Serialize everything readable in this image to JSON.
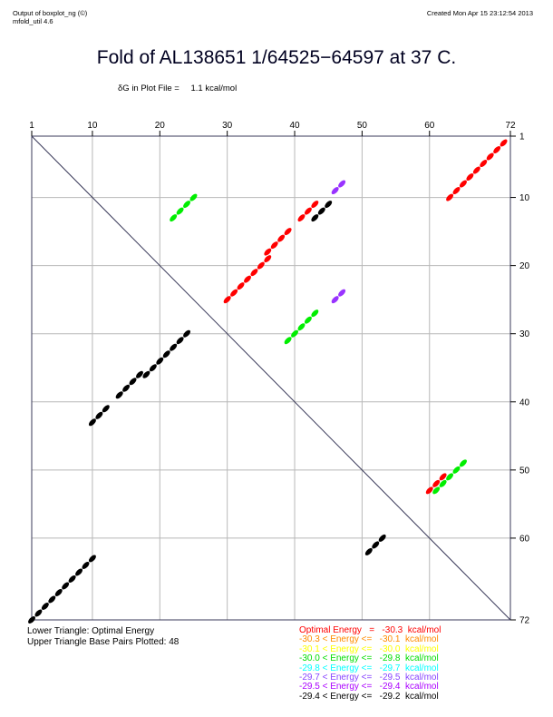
{
  "header": {
    "left_line1": "Output of boxplot_ng (©)",
    "left_line2": "mfold_util 4.6",
    "right": "Created Mon Apr 15 23:12:54 2013"
  },
  "title": "Fold of AL138651 1/64525−64597 at 37 C.",
  "dg": {
    "label": "δG in Plot File =",
    "value": "1.1 kcal/mol"
  },
  "footer": {
    "lower": "Lower Triangle: Optimal Energy",
    "upper": "Upper Triangle Base Pairs Plotted: 48"
  },
  "legend": [
    {
      "text": "Optimal Energy   =   -30.3  kcal/mol",
      "color": "#ff0000"
    },
    {
      "text": "-30.3 < Energy <=   -30.1  kcal/mol",
      "color": "#ff8c00"
    },
    {
      "text": "-30.1 < Energy <=   -30.0  kcal/mol",
      "color": "#ffff00"
    },
    {
      "text": "-30.0 < Energy <=   -29.8  kcal/mol",
      "color": "#00dd00"
    },
    {
      "text": "-29.8 < Energy <=   -29.7  kcal/mol",
      "color": "#00ffff"
    },
    {
      "text": "-29.7 < Energy <=   -29.5  kcal/mol",
      "color": "#8844ff"
    },
    {
      "text": "-29.5 < Energy <=   -29.4  kcal/mol",
      "color": "#aa00ff"
    },
    {
      "text": "-29.4 < Energy <=   -29.2  kcal/mol",
      "color": "#000000"
    }
  ],
  "chart_data": {
    "type": "scatter",
    "axis_range": [
      1,
      72
    ],
    "x_ticks": [
      1,
      10,
      20,
      30,
      40,
      50,
      60,
      72
    ],
    "y_ticks": [
      1,
      10,
      20,
      30,
      40,
      50,
      60,
      72
    ],
    "grid": true,
    "lower_triangle": [
      {
        "color": "black",
        "points": [
          [
            10,
            43
          ],
          [
            11,
            42
          ],
          [
            12,
            41
          ],
          [
            14,
            39
          ],
          [
            15,
            38
          ],
          [
            16,
            37
          ],
          [
            17,
            36
          ],
          [
            18,
            36
          ],
          [
            19,
            35
          ],
          [
            20,
            34
          ],
          [
            21,
            33
          ],
          [
            22,
            32
          ],
          [
            23,
            31
          ],
          [
            24,
            30
          ],
          [
            1,
            72
          ],
          [
            2,
            71
          ],
          [
            3,
            70
          ],
          [
            4,
            69
          ],
          [
            5,
            68
          ],
          [
            6,
            67
          ],
          [
            7,
            66
          ],
          [
            8,
            65
          ],
          [
            9,
            64
          ],
          [
            10,
            63
          ],
          [
            51,
            62
          ],
          [
            52,
            61
          ],
          [
            53,
            60
          ]
        ]
      },
      {
        "color": "red",
        "points": [
          [
            60,
            53
          ],
          [
            61,
            52
          ],
          [
            62,
            51
          ]
        ]
      }
    ],
    "upper_triangle": [
      {
        "color": "red",
        "points": [
          [
            30,
            25
          ],
          [
            31,
            24
          ],
          [
            32,
            23
          ],
          [
            33,
            22
          ],
          [
            34,
            21
          ],
          [
            35,
            20
          ],
          [
            36,
            19
          ],
          [
            36,
            18
          ],
          [
            37,
            17
          ],
          [
            38,
            16
          ],
          [
            39,
            15
          ],
          [
            41,
            13
          ],
          [
            42,
            12
          ],
          [
            43,
            11
          ],
          [
            63,
            10
          ],
          [
            64,
            9
          ],
          [
            65,
            8
          ],
          [
            66,
            7
          ],
          [
            67,
            6
          ],
          [
            68,
            5
          ],
          [
            69,
            4
          ],
          [
            70,
            3
          ],
          [
            71,
            2
          ]
        ]
      },
      {
        "color": "black",
        "points": [
          [
            43,
            13
          ],
          [
            44,
            12
          ],
          [
            45,
            11
          ]
        ]
      },
      {
        "color": "lime",
        "points": [
          [
            22,
            13
          ],
          [
            23,
            12
          ],
          [
            24,
            11
          ],
          [
            25,
            10
          ],
          [
            39,
            31
          ],
          [
            40,
            30
          ],
          [
            41,
            29
          ],
          [
            42,
            28
          ],
          [
            43,
            27
          ],
          [
            61,
            53
          ],
          [
            62,
            52
          ],
          [
            63,
            51
          ],
          [
            64,
            50
          ],
          [
            65,
            49
          ]
        ]
      },
      {
        "color": "purple",
        "points": [
          [
            46,
            9
          ],
          [
            47,
            8
          ],
          [
            46,
            25
          ],
          [
            47,
            24
          ]
        ]
      }
    ]
  }
}
